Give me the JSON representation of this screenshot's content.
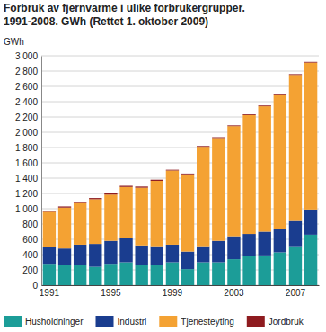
{
  "chart_data": {
    "type": "bar",
    "stacked": true,
    "title": "Forbruk av fjernvarme i ulike forbrukergrupper.",
    "subtitle": "1991-2008. GWh (Rettet 1. oktober 2009)",
    "y_label": "GWh",
    "categories": [
      "1991",
      null,
      null,
      null,
      "1995",
      null,
      null,
      null,
      "1999",
      null,
      null,
      null,
      "2003",
      null,
      null,
      null,
      "2007",
      null
    ],
    "series": [
      {
        "name": "Husholdninger",
        "color": "#1c9d98",
        "values": [
          280,
          260,
          260,
          240,
          280,
          300,
          260,
          270,
          300,
          210,
          300,
          300,
          340,
          380,
          390,
          430,
          510,
          660
        ]
      },
      {
        "name": "Industri",
        "color": "#1a3d8f",
        "values": [
          220,
          220,
          270,
          300,
          300,
          320,
          260,
          240,
          230,
          230,
          210,
          280,
          300,
          290,
          310,
          310,
          330,
          330
        ]
      },
      {
        "name": "Tjenesteyting",
        "color": "#f4a233",
        "values": [
          460,
          535,
          545,
          585,
          605,
          665,
          755,
          855,
          970,
          1010,
          1300,
          1345,
          1440,
          1555,
          1640,
          1745,
          1910,
          1920
        ]
      },
      {
        "name": "Jordbruk",
        "color": "#8e1b1f",
        "values": [
          15,
          15,
          15,
          15,
          15,
          15,
          15,
          15,
          10,
          10,
          10,
          10,
          10,
          10,
          10,
          10,
          10,
          10
        ]
      }
    ],
    "ylim": [
      0,
      3000
    ],
    "yticks": [
      0,
      200,
      400,
      600,
      800,
      {
        "value": 1000,
        "label": "1 000"
      },
      {
        "value": 1200,
        "label": "1 200"
      },
      {
        "value": 1400,
        "label": "1 400"
      },
      {
        "value": 1600,
        "label": "1 600"
      },
      {
        "value": 1800,
        "label": "1 800"
      },
      {
        "value": 2000,
        "label": "2 000"
      },
      {
        "value": 2200,
        "label": "2 200"
      },
      {
        "value": 2400,
        "label": "2 400"
      },
      {
        "value": 2600,
        "label": "2 600"
      },
      {
        "value": 2800,
        "label": "2 800"
      },
      {
        "value": 3000,
        "label": "3 000"
      }
    ],
    "grid": true,
    "legend": "bottom"
  }
}
